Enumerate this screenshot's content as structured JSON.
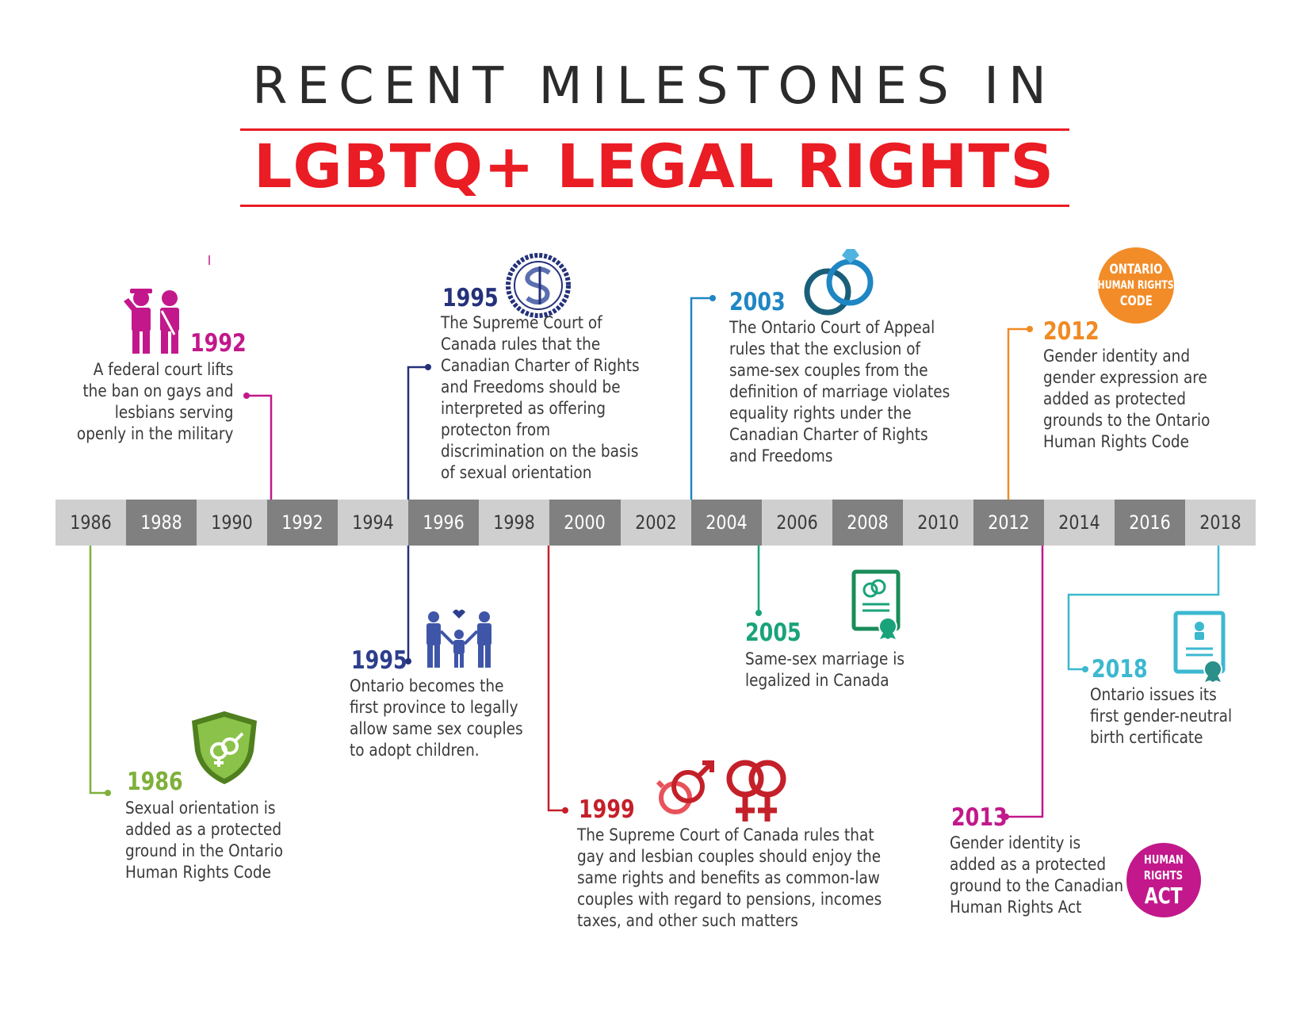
{
  "header": {
    "title_line1": "RECENT MILESTONES IN",
    "title_line2": "LGBTQ+ LEGAL RIGHTS"
  },
  "timeline": {
    "years": [
      "1986",
      "1988",
      "1990",
      "1992",
      "1994",
      "1996",
      "1998",
      "2000",
      "2002",
      "2004",
      "2006",
      "2008",
      "2010",
      "2012",
      "2014",
      "2016",
      "2018"
    ]
  },
  "milestones": [
    {
      "year": "1986",
      "text": "Sexual orientation is\nadded as a protected\nground in the Ontario\nHuman Rights Code",
      "color": "#7fb03a",
      "icon": "gender-shield-icon"
    },
    {
      "year": "1992",
      "text": "A federal court lifts\nthe ban on gays and\nlesbians serving\nopenly in the military",
      "color": "#c2188b",
      "icon": "soldiers-icon"
    },
    {
      "year": "1995",
      "text": "The Supreme Court of\nCanada rules that the\nCanadian Charter of Rights\nand Freedoms should be\ninterpreted as offering\nprotecton from\ndiscrimination on the basis\nof sexual orientation",
      "color": "#24317a",
      "icon": "supreme-court-seal-icon"
    },
    {
      "year": "1995",
      "text": "Ontario becomes the\nfirst province to legally\nallow same sex couples\nto adopt children.",
      "color": "#2c3e8c",
      "icon": "family-icon"
    },
    {
      "year": "1999",
      "text": "The Supreme Court of Canada rules that\ngay and lesbian couples should enjoy the\nsame rights and benefits as common-law\ncouples with regard to pensions, incomes\ntaxes, and other such matters",
      "color": "#c4202a",
      "icon": "gender-symbols-icon"
    },
    {
      "year": "2003",
      "text": "The Ontario Court of Appeal\nrules that the exclusion of\nsame-sex couples from the\ndefinition of marriage violates\nequality rights under the\nCanadian Charter of Rights\nand Freedoms",
      "color": "#1f86c4",
      "icon": "rings-icon"
    },
    {
      "year": "2005",
      "text": "Same-sex marriage is\nlegalized in Canada",
      "color": "#1aa37a",
      "icon": "marriage-certificate-icon"
    },
    {
      "year": "2012",
      "text": "Gender identity and\ngender expression are\nadded as protected\ngrounds to the Ontario\nHuman Rights Code",
      "color": "#f08a24",
      "icon": "ontario-badge-icon",
      "badge": [
        "ONTARIO",
        "HUMAN RIGHTS",
        "CODE"
      ]
    },
    {
      "year": "2013",
      "text": "Gender identity is\nadded as a protected\nground to the Canadian\nHuman Rights Act",
      "color": "#c2188b",
      "icon": "human-rights-act-badge-icon",
      "badge": [
        "HUMAN",
        "RIGHTS",
        "ACT"
      ]
    },
    {
      "year": "2018",
      "text": "Ontario issues its\nfirst gender-neutral\nbirth certificate",
      "color": "#3cb8d0",
      "icon": "birth-certificate-icon"
    }
  ]
}
